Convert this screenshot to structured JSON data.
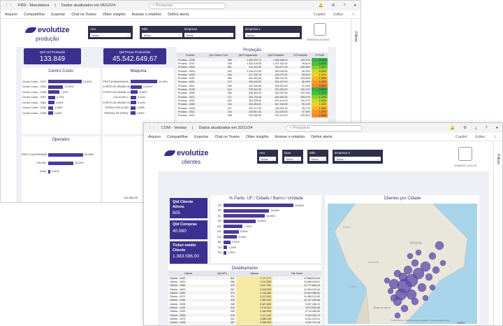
{
  "w1": {
    "title": "PRD - Manufatura",
    "updated": "Dados atualizados em 06/12/24",
    "search": "Pesquisar",
    "toolbar": [
      "Arquivo",
      "Compartilhar",
      "Exportar",
      "Chat no Teams",
      "Obter insights",
      "Assinar o relatório",
      "Definir alerta"
    ],
    "toolbar_right": [
      "Copilot",
      "Editar"
    ],
    "brand": "evolutize",
    "subtitle": "produção",
    "slicers": [
      {
        "label": "Ano",
        "value": "Todos"
      },
      {
        "label": "Mês",
        "value": "Todos"
      },
      {
        "label": "Empresa",
        "value": "Todos"
      },
      {
        "label": "Empresa x",
        "value": "Todos"
      }
    ],
    "date_stamp": "09/09/2024 13:15:04",
    "kpis": [
      {
        "label": "Qtd Ord Produção",
        "value": "133.849"
      },
      {
        "label": "Qtd Peças Produzidas",
        "value": "45.542.649,67"
      }
    ],
    "centro_custo": {
      "title": "Centro Custo",
      "rows": [
        {
          "cat": "Centro Custo - 3370",
          "pct": "22,52%",
          "v": 22.52
        },
        {
          "cat": "Centro Custo - 3320",
          "pct": "10,03%",
          "v": 10.03
        },
        {
          "cat": "Centro Custo - 3336",
          "pct": "7,41%",
          "v": 7.41
        },
        {
          "cat": "Centro Custo - 3397",
          "pct": "4,73%",
          "v": 4.73
        },
        {
          "cat": "Centro Custo - 3381",
          "pct": "4,03%",
          "v": 4.03
        },
        {
          "cat": "Centro Custo - 3335",
          "pct": "3,48%",
          "v": 3.48
        },
        {
          "cat": "Centro Custo - 3336",
          "pct": "3,06%",
          "v": 3.06
        }
      ]
    },
    "maquina": {
      "title": "Máquina",
      "rows": [
        {
          "cat": "PRETOFAMARANHA",
          "pct": "25,26%",
          "v": 25.26
        },
        {
          "cat": "CORTE DE ARAME 05",
          "pct": "10,43%",
          "v": 10.43
        },
        {
          "cat": "CORTE DE ARAME 01",
          "pct": "6,95%",
          "v": 6.95
        },
        {
          "cat": "CALIA MAI 1",
          "pct": "5,44%",
          "v": 5.44
        },
        {
          "cat": "CORTE DE ARAME 03",
          "pct": "5,44%",
          "v": 5.44
        },
        {
          "cat": "SERRA CIRCULAR",
          "pct": "4,86%",
          "v": 4.86
        },
        {
          "cat": "PRENSA DE ESPAL",
          "pct": "4,55%",
          "v": 4.55
        }
      ]
    },
    "producao": {
      "title": "Produção",
      "headers": [
        "Produto",
        "Qtd Ordem Prod",
        "Qtd Programada",
        "Qtd Produzida",
        "% Produção",
        "% Perfil"
      ],
      "rows": [
        [
          "Produto - 0296",
          "465",
          "1.355.332,70",
          "1.359.556,00",
          "100,31%",
          "2,09%"
        ],
        [
          "Produto - 0237",
          "295",
          "1.322.376,50",
          "1.337.302,00",
          "99,61%",
          "0,87%"
        ],
        [
          "Produto - 0002",
          "361",
          "312.322,00",
          "300.671,00",
          "290,00%",
          "1,90%"
        ],
        [
          "Produto - 0004",
          "252",
          "1.234.011,00",
          "300.000,00",
          "95,10%",
          "0,00%"
        ],
        [
          "Produto - 0003",
          "316",
          "317.432,76",
          "310.070,00",
          "99,00%",
          "1,47%"
        ],
        [
          "Produto - 0187",
          "366",
          "450.322,00",
          "338.752,00",
          "104,00%",
          "1,40%"
        ],
        [
          "Produto - 0001",
          "372",
          "338.432,00",
          "304.127,00",
          "96,40%",
          "1,43%"
        ],
        [
          "Produto - 0011",
          "446",
          "322.330,00",
          "326.332,00",
          "97,10%",
          "0,30%"
        ],
        [
          "Produto - 0195",
          "414",
          "375.322,00",
          "312.200,00",
          "100,21%",
          "2,50%"
        ],
        [
          "Produto - 0009",
          "263",
          "345.303,00",
          "343.097,00",
          "102,33%",
          "1,90%"
        ],
        [
          "Produto - 0012",
          "171",
          "292.732,00",
          "484.540,00",
          "295,07%",
          "1,37%"
        ],
        [
          "Produto - 0022",
          "242",
          "302.320,00",
          "470.101,00",
          "131,27%",
          "1,60%"
        ],
        [
          "Produto - 0063",
          "234",
          "334.304,00",
          "467.320,00",
          "95,14%",
          "1,36%"
        ],
        [
          "Produto - 0036",
          "227",
          "421.377,00",
          "420.911,00",
          "99,77%",
          "1,38%"
        ],
        [
          "Produto - 0010",
          "193",
          "225.507,00",
          "211.025,00",
          "97,30%",
          "1,40%"
        ],
        [
          "Produto - 0313",
          "186",
          "222.300,00",
          "221.212,00",
          "102,00%",
          "1,05%"
        ]
      ]
    },
    "operador": {
      "title": "Operador",
      "rows": [
        {
          "cat": "RÉSI CLAUSERMAN",
          "pct": "50,48%",
          "v": 50.48
        },
        {
          "cat": "OSL081",
          "pct": "36,24%",
          "v": 36.24
        },
        {
          "cat": "Geral",
          "pct": "3,00%",
          "v": 3.0
        }
      ]
    },
    "filters": "Filtros",
    "fragment_value": "141.800,00"
  },
  "w2": {
    "title": "COM - Vendas",
    "updated": "Dados atualizados em 22/11/24",
    "search": "Pesquisar",
    "toolbar": [
      "Arquivo",
      "Compartilhar",
      "Exportar",
      "Chat no Teams",
      "Obter insights",
      "Assinar o relatório",
      "Definir alerta"
    ],
    "toolbar_right": [
      "Copilot",
      "Editar"
    ],
    "brand": "evolutize",
    "subtitle": "clientes",
    "slicers": [
      {
        "label": "Ano",
        "value": "Todos"
      },
      {
        "label": "Dias",
        "value": "Todos"
      },
      {
        "label": "Mês",
        "value": "Todos"
      },
      {
        "label": "Empresa X",
        "value": "Todos"
      }
    ],
    "date_stamp": "11/06/2024 13:21:15",
    "kpis": [
      {
        "label": "Qtd Cliente Ativos",
        "value": "805"
      },
      {
        "label": "Qtd Compras",
        "value": "40.960"
      },
      {
        "label": "Ticket médio Cliente",
        "value": "1.383.596,00"
      }
    ],
    "uf_chart": {
      "title": "% Partic. UF / Cidade / Bairro / Unidade",
      "rows": [
        {
          "cat": "SP",
          "pct": "25,58%",
          "v": 25.58
        },
        {
          "cat": "PR",
          "pct": "16,66%",
          "v": 16.66
        },
        {
          "cat": "SC",
          "pct": "15,05%",
          "v": 15.05
        },
        {
          "cat": "RS",
          "pct": "11,84%",
          "v": 11.84
        },
        {
          "cat": "MG",
          "pct": "7,02%",
          "v": 7.02
        },
        {
          "cat": "MT",
          "pct": "5,59%",
          "v": 5.59
        },
        {
          "cat": "GO",
          "pct": "4,93%",
          "v": 4.93
        },
        {
          "cat": "BA",
          "pct": "2,51%",
          "v": 2.51
        },
        {
          "cat": "RJ",
          "pct": "1,34%",
          "v": 1.34
        },
        {
          "cat": "SA",
          "pct": "1,00%",
          "v": 1.0
        }
      ]
    },
    "detalhamento": {
      "title": "Detalhamento",
      "headers": [
        "Cliente",
        "Qtd NF's",
        "Valores",
        "Fat. Bruto"
      ],
      "rows": [
        [
          "Cliente - 0302",
          "821",
          "7.177.377",
          "17.666.013,94"
        ],
        [
          "Cliente - 2491",
          "365",
          "3.411.805",
          "13.988.016,01"
        ],
        [
          "Cliente - 0360",
          "475",
          "2.817.960",
          "11.777.884,04"
        ],
        [
          "Cliente - 0420",
          "367",
          "2.619.000",
          "11.404.019,44"
        ],
        [
          "Cliente - 0090",
          "374",
          "2.415.580",
          "10.823.085,02"
        ],
        [
          "Cliente - 0371",
          "376",
          "2.417.941",
          "10.450.013,80"
        ],
        [
          "Cliente - 2050",
          "316",
          "2.382.000",
          "10.127.025,56"
        ],
        [
          "Cliente - 0005",
          "208",
          "2.327.800",
          "9.997.006,13"
        ],
        [
          "Cliente - 0130",
          "316",
          "2.215.302",
          "9.873.503,06"
        ],
        [
          "Cliente - 0200",
          "299",
          "2.160.300",
          "9.710.050,80"
        ],
        [
          "Cliente - 0006",
          "216",
          "2.117.000",
          "9.433.053,70"
        ],
        [
          "Cliente - 0072",
          "331",
          "2.086.100",
          "9.251.022,01"
        ],
        [
          "Cliente - 0038",
          "257",
          "2.056.000",
          "9.091.074,18"
        ],
        [
          "Cliente - 0129",
          "305",
          "2.002.300",
          "8.980.084,60"
        ],
        [
          "Cliente - 0180",
          "202",
          "1.981.300",
          "8.850.050,01"
        ],
        [
          "Cliente - 0057",
          "318",
          "1.952.100",
          "8.711.040,66"
        ]
      ],
      "total": [
        "Total",
        "40.960",
        "122.044.960",
        "1.383.596.000,00"
      ]
    },
    "map_title": "Clientes por Cidade",
    "map_labels": [
      "BRASIL",
      "PERU",
      "BOLIVIA",
      "Buenos Aires",
      "URUGUAI",
      "CHILE"
    ],
    "map_credit": "© 2024 TomTom, © 2024 Microsoft Corporation, © OpenStreetMap Terms",
    "filters": "Filtros",
    "zoom": "104%"
  },
  "colors": {
    "accent": "#3d2f8f",
    "slicer": "#2f2f4a",
    "bg": "#eef0f5"
  }
}
